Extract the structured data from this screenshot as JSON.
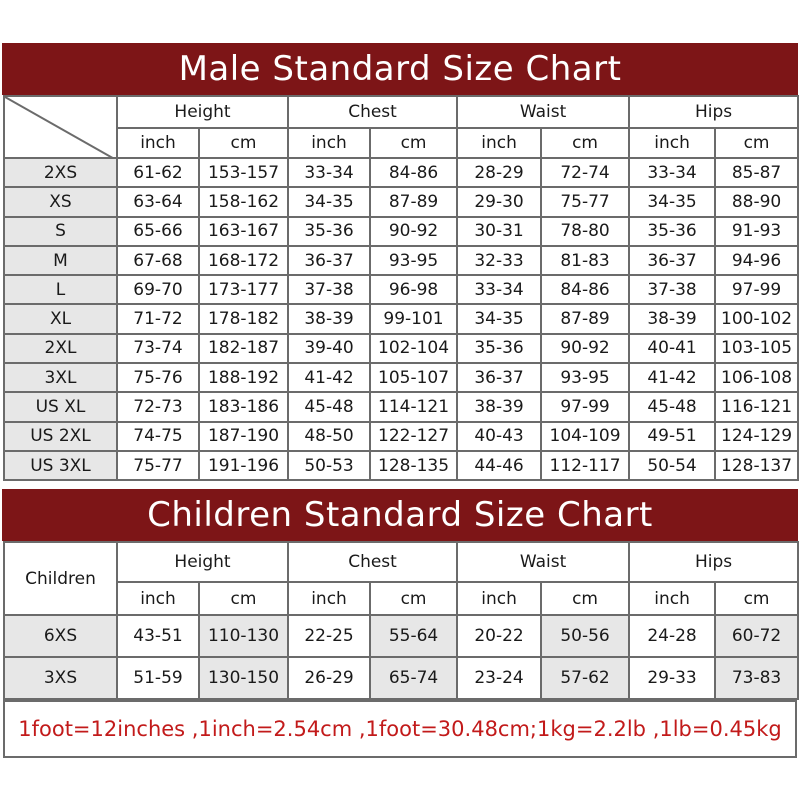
{
  "male": {
    "title": "Male Standard Size Chart",
    "groups": [
      "Height",
      "Chest",
      "Waist",
      "Hips"
    ],
    "units": [
      "inch",
      "cm",
      "inch",
      "cm",
      "inch",
      "cm",
      "inch",
      "cm"
    ],
    "rows": [
      [
        "2XS",
        "61-62",
        "153-157",
        "33-34",
        "84-86",
        "28-29",
        "72-74",
        "33-34",
        "85-87"
      ],
      [
        "XS",
        "63-64",
        "158-162",
        "34-35",
        "87-89",
        "29-30",
        "75-77",
        "34-35",
        "88-90"
      ],
      [
        "S",
        "65-66",
        "163-167",
        "35-36",
        "90-92",
        "30-31",
        "78-80",
        "35-36",
        "91-93"
      ],
      [
        "M",
        "67-68",
        "168-172",
        "36-37",
        "93-95",
        "32-33",
        "81-83",
        "36-37",
        "94-96"
      ],
      [
        "L",
        "69-70",
        "173-177",
        "37-38",
        "96-98",
        "33-34",
        "84-86",
        "37-38",
        "97-99"
      ],
      [
        "XL",
        "71-72",
        "178-182",
        "38-39",
        "99-101",
        "34-35",
        "87-89",
        "38-39",
        "100-102"
      ],
      [
        "2XL",
        "73-74",
        "182-187",
        "39-40",
        "102-104",
        "35-36",
        "90-92",
        "40-41",
        "103-105"
      ],
      [
        "3XL",
        "75-76",
        "188-192",
        "41-42",
        "105-107",
        "36-37",
        "93-95",
        "41-42",
        "106-108"
      ],
      [
        "US XL",
        "72-73",
        "183-186",
        "45-48",
        "114-121",
        "38-39",
        "97-99",
        "45-48",
        "116-121"
      ],
      [
        "US 2XL",
        "74-75",
        "187-190",
        "48-50",
        "122-127",
        "40-43",
        "104-109",
        "49-51",
        "124-129"
      ],
      [
        "US 3XL",
        "75-77",
        "191-196",
        "50-53",
        "128-135",
        "44-46",
        "112-117",
        "50-54",
        "128-137"
      ]
    ]
  },
  "children": {
    "title": "Children Standard Size Chart",
    "corner_label": "Children",
    "groups": [
      "Height",
      "Chest",
      "Waist",
      "Hips"
    ],
    "units": [
      "inch",
      "cm",
      "inch",
      "cm",
      "inch",
      "cm",
      "inch",
      "cm"
    ],
    "rows": [
      [
        "6XS",
        "43-51",
        "110-130",
        "22-25",
        "55-64",
        "20-22",
        "50-56",
        "24-28",
        "60-72"
      ],
      [
        "3XS",
        "51-59",
        "130-150",
        "26-29",
        "65-74",
        "23-24",
        "57-62",
        "29-33",
        "73-83"
      ]
    ]
  },
  "footer": "1foot=12inches ,1inch=2.54cm ,1foot=30.48cm;1kg=2.2lb ,1lb=0.45kg",
  "colors": {
    "banner": "#7d1517",
    "footer_text": "#c21a1a",
    "shaded_cell": "#e7e7e7"
  }
}
